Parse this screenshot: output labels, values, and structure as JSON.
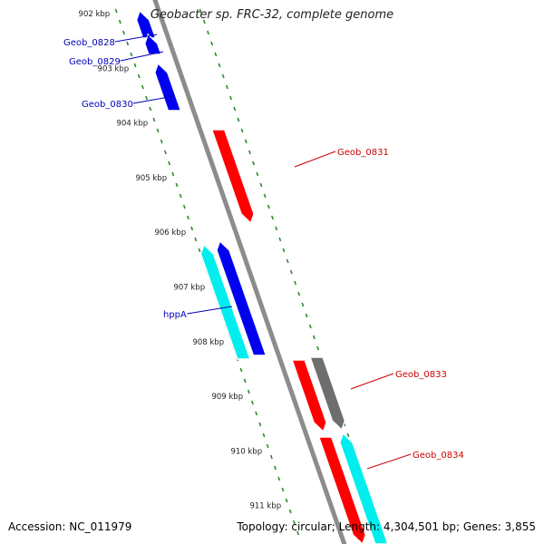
{
  "title": "Geobacter sp. FRC-32, complete genome",
  "footer": {
    "accession": "Accession: NC_011979",
    "summary": "Topology: circular; Length: 4,304,501 bp; Genes: 3,855"
  },
  "colors": {
    "backbone": "#8c8c8c",
    "tick": "#2e8b2e",
    "forward_gene": "#ff0000",
    "forward_other": "#6e6e6e",
    "reverse_gene": "#0000ee",
    "reverse_rna": "#00eeee",
    "label_forward": "#cc0000",
    "label_reverse": "#0000bb"
  },
  "scale_labels": [
    "902 kbp",
    "903 kbp",
    "904 kbp",
    "905 kbp",
    "906 kbp",
    "907 kbp",
    "908 kbp",
    "909 kbp",
    "910 kbp",
    "911 kbp"
  ],
  "gene_labels": {
    "Geob_0828": "Geob_0828",
    "Geob_0829": "Geob_0829",
    "Geob_0830": "Geob_0830",
    "Geob_0831": "Geob_0831",
    "hppA": "hppA",
    "Geob_0833": "Geob_0833",
    "Geob_0834": "Geob_0834"
  }
}
